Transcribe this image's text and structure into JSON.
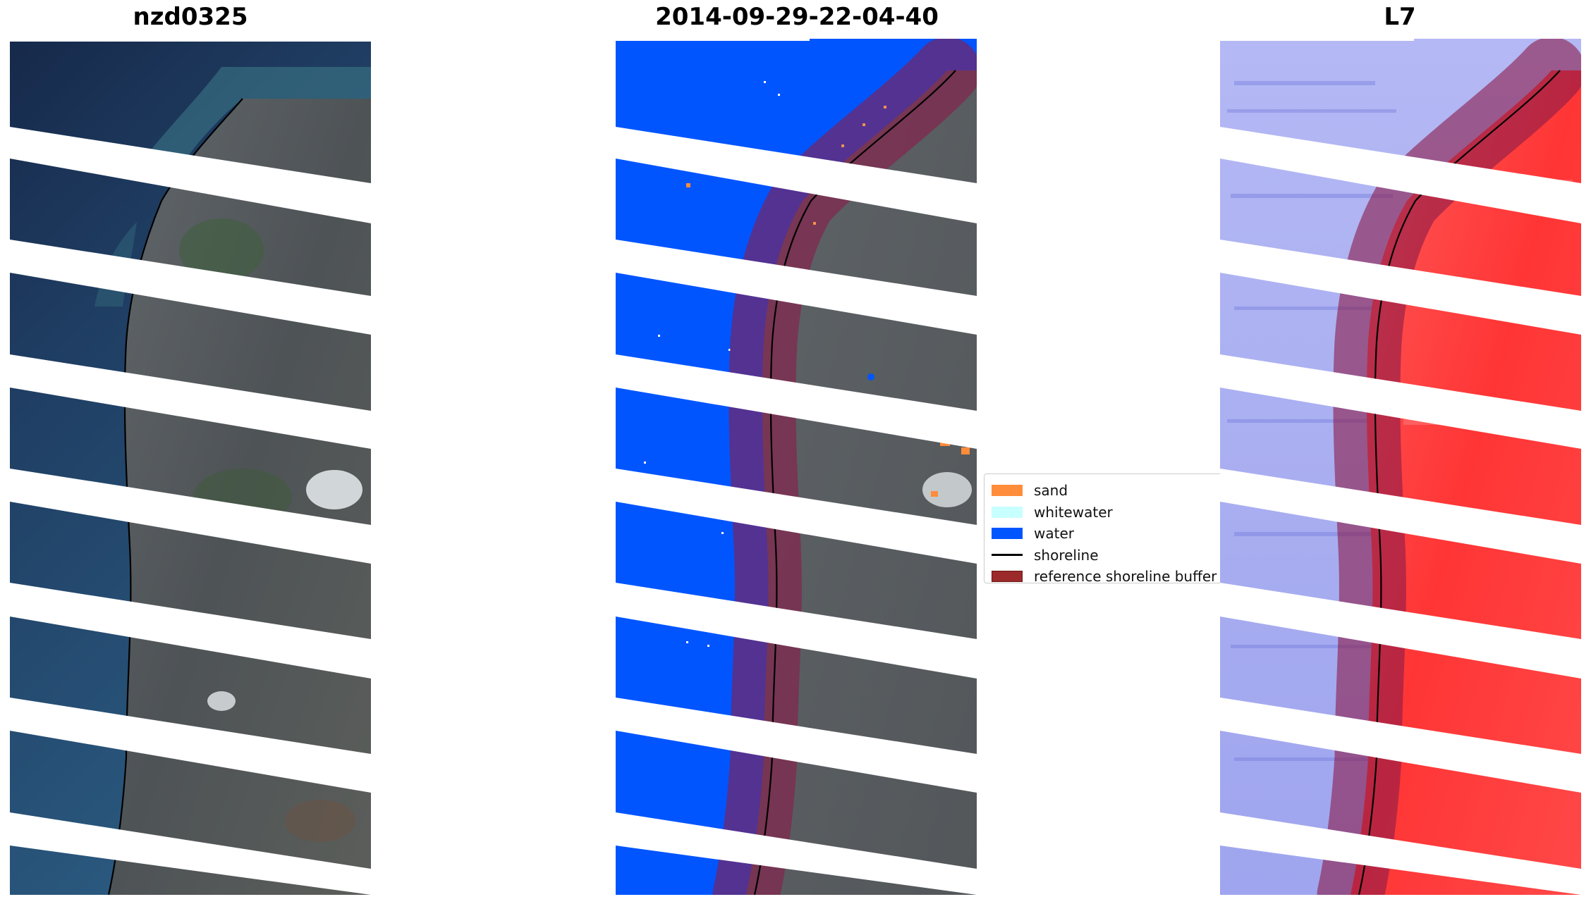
{
  "panels": [
    {
      "title": "nzd0325",
      "kind": "rgb-image"
    },
    {
      "title": "2014-09-29-22-04-40",
      "kind": "classified-image"
    },
    {
      "title": "L7",
      "kind": "mndwi-image"
    }
  ],
  "legend": {
    "items": [
      {
        "label": "sand",
        "color": "#ff8c3a"
      },
      {
        "label": "whitewater",
        "color": "#c8ffff"
      },
      {
        "label": "water",
        "color": "#0055ff"
      },
      {
        "label": "shoreline",
        "color": "#000000"
      },
      {
        "label": "reference shoreline buffer",
        "color": "#9c2a2a"
      }
    ]
  },
  "colors": {
    "sea_dark": "#1a3355",
    "sea_mid": "#2c5f85",
    "land": "#5a5f64",
    "water_class": "#0055ff",
    "buffer": "#8b1a4a",
    "index_blue": "#a9aef2",
    "index_red": "#ff4040"
  }
}
